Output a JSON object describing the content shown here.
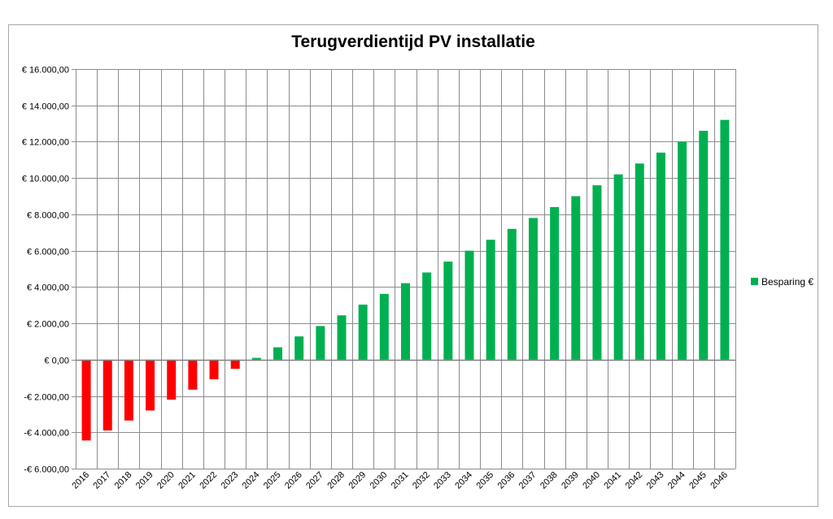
{
  "chart_data": {
    "type": "bar",
    "title": "Terugverdientijd PV installatie",
    "xlabel": "",
    "ylabel": "",
    "categories": [
      "2016",
      "2017",
      "2018",
      "2019",
      "2020",
      "2021",
      "2022",
      "2023",
      "2024",
      "2025",
      "2026",
      "2027",
      "2028",
      "2029",
      "2030",
      "2031",
      "2032",
      "2033",
      "2034",
      "2035",
      "2036",
      "2037",
      "2038",
      "2039",
      "2040",
      "2041",
      "2042",
      "2043",
      "2044",
      "2045",
      "2046"
    ],
    "series": [
      {
        "name": "Besparing €",
        "values": [
          -4450,
          -3900,
          -3350,
          -2800,
          -2200,
          -1650,
          -1080,
          -500,
          100,
          680,
          1280,
          1850,
          2440,
          3030,
          3620,
          4210,
          4800,
          5400,
          6000,
          6600,
          7200,
          7800,
          8400,
          9000,
          9600,
          10200,
          10800,
          11400,
          12000,
          12600,
          13200
        ]
      }
    ],
    "ylim": [
      -6000,
      16000
    ],
    "yticks": [
      16000,
      14000,
      12000,
      10000,
      8000,
      6000,
      4000,
      2000,
      0,
      -2000,
      -4000,
      -6000
    ],
    "ytick_labels": [
      "€ 16.000,00",
      "€ 14.000,00",
      "€ 12.000,00",
      "€ 10.000,00",
      "€ 8.000,00",
      "€ 6.000,00",
      "€ 4.000,00",
      "€ 2.000,00",
      "€ 0,00",
      "-€ 2.000,00",
      "-€ 4.000,00",
      "-€ 6.000,00"
    ],
    "grid": true,
    "legend_position": "right",
    "colors": {
      "positive": "#00b050",
      "negative": "#ff0000",
      "grid": "#8c8c8c",
      "legend_marker": "#00b050"
    }
  }
}
